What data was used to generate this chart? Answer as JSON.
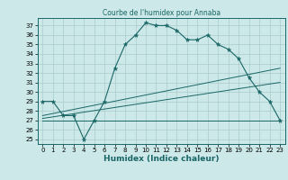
{
  "title": "Courbe de l'humidex pour Annaba",
  "xlabel": "Humidex (Indice chaleur)",
  "ylabel": "",
  "bg_color": "#cce8e8",
  "grid_color": "#aacccc",
  "line_color": "#1a6666",
  "xlim": [
    -0.5,
    23.5
  ],
  "ylim": [
    24.5,
    37.8
  ],
  "yticks": [
    25,
    26,
    27,
    28,
    29,
    30,
    31,
    32,
    33,
    34,
    35,
    36,
    37
  ],
  "xticks": [
    0,
    1,
    2,
    3,
    4,
    5,
    6,
    7,
    8,
    9,
    10,
    11,
    12,
    13,
    14,
    15,
    16,
    17,
    18,
    19,
    20,
    21,
    22,
    23
  ],
  "series1": {
    "x": [
      0,
      1,
      2,
      3,
      4,
      5,
      6,
      7,
      8,
      9,
      10,
      11,
      12,
      13,
      14,
      15,
      16,
      17,
      18,
      19,
      20,
      21,
      22,
      23
    ],
    "y": [
      29.0,
      29.0,
      27.5,
      27.5,
      25.0,
      27.0,
      29.0,
      32.5,
      35.0,
      36.0,
      37.3,
      37.0,
      37.0,
      36.5,
      35.5,
      35.5,
      36.0,
      35.0,
      34.5,
      33.5,
      31.5,
      30.0,
      29.0,
      27.0
    ]
  },
  "series2": {
    "x": [
      0,
      23
    ],
    "y": [
      27.5,
      32.5
    ]
  },
  "series3": {
    "x": [
      0,
      23
    ],
    "y": [
      27.2,
      31.0
    ]
  },
  "series4": {
    "x": [
      0,
      23
    ],
    "y": [
      27.0,
      27.0
    ]
  }
}
